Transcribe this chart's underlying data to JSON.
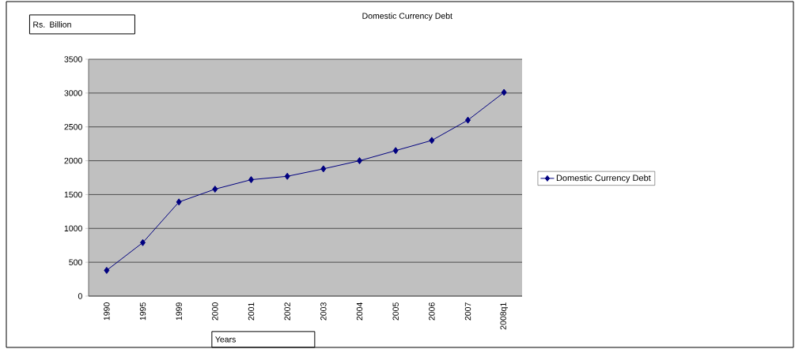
{
  "chart_data": {
    "type": "line",
    "title": "Domestic Currency Debt",
    "ylabel": "Rs. Billion",
    "xlabel": "Years",
    "categories": [
      "1990",
      "1995",
      "1999",
      "2000",
      "2001",
      "2002",
      "2003",
      "2004",
      "2005",
      "2006",
      "2007",
      "2008q1"
    ],
    "series": [
      {
        "name": "Domestic Currency Debt",
        "color": "#000080",
        "values": [
          380,
          790,
          1390,
          1580,
          1720,
          1770,
          1880,
          2000,
          2150,
          2300,
          2600,
          3010
        ]
      }
    ],
    "ylim": [
      0,
      3500
    ],
    "yticks": [
      0,
      500,
      1000,
      1500,
      2000,
      2500,
      3000,
      3500
    ],
    "grid": "y",
    "legend": "right",
    "marker": "diamond",
    "line_style": "solid"
  }
}
